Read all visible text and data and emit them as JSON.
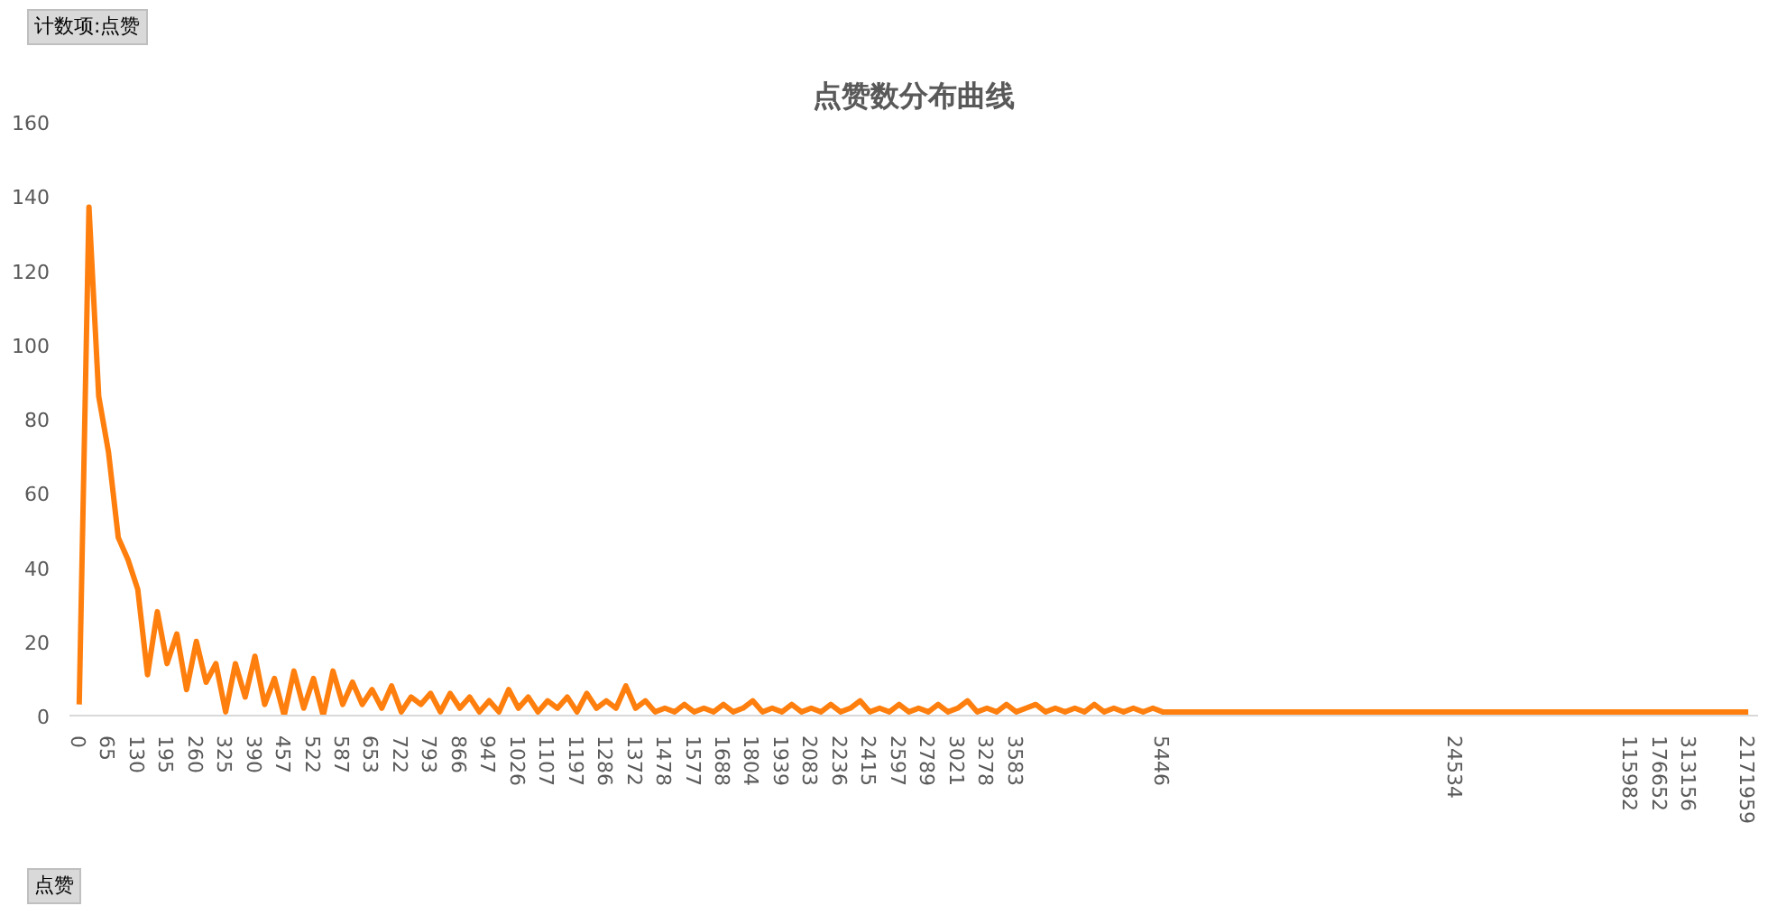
{
  "chart_data": {
    "type": "line",
    "title": "点赞数分布曲线",
    "annotations": [
      "计数项:点赞",
      "点赞"
    ],
    "categories": [
      "0",
      null,
      null,
      "65",
      null,
      null,
      "130",
      null,
      null,
      "195",
      null,
      null,
      "260",
      null,
      null,
      "325",
      null,
      null,
      "390",
      null,
      null,
      "457",
      null,
      null,
      "522",
      null,
      null,
      "587",
      null,
      null,
      "653",
      null,
      null,
      "722",
      null,
      null,
      "793",
      null,
      null,
      "866",
      null,
      null,
      "947",
      null,
      null,
      "1026",
      null,
      null,
      "1107",
      null,
      null,
      "1197",
      null,
      null,
      "1286",
      null,
      null,
      "1372",
      null,
      null,
      "1478",
      null,
      null,
      "1577",
      null,
      null,
      "1688",
      null,
      null,
      "1804",
      null,
      null,
      "1939",
      null,
      null,
      "2083",
      null,
      null,
      "2236",
      null,
      null,
      "2415",
      null,
      null,
      "2597",
      null,
      null,
      "2789",
      null,
      null,
      "3021",
      null,
      null,
      "3278",
      null,
      null,
      "3583",
      null,
      null,
      null,
      null,
      null,
      null,
      null,
      null,
      null,
      null,
      null,
      null,
      null,
      null,
      "5446",
      null,
      null,
      null,
      null,
      null,
      null,
      null,
      null,
      null,
      null,
      null,
      null,
      null,
      null,
      null,
      null,
      null,
      null,
      null,
      null,
      null,
      null,
      null,
      null,
      null,
      null,
      null,
      null,
      null,
      "24534",
      null,
      null,
      null,
      null,
      null,
      null,
      null,
      null,
      null,
      null,
      null,
      null,
      null,
      null,
      null,
      null,
      null,
      "115982",
      null,
      null,
      "176652",
      null,
      null,
      "313156",
      null,
      null,
      null,
      null,
      null,
      "2171959"
    ],
    "ylim": [
      0,
      160
    ],
    "yticks": [
      0,
      20,
      40,
      60,
      80,
      100,
      120,
      140,
      160
    ],
    "grid": false,
    "marker": "none",
    "line_style": "solid",
    "series": [
      {
        "color": "#ff7f0e",
        "values": [
          3,
          137,
          86,
          71,
          48,
          42,
          34,
          11,
          28,
          14,
          22,
          7,
          20,
          9,
          14,
          1,
          14,
          5,
          16,
          3,
          10,
          0,
          12,
          2,
          10,
          0,
          12,
          3,
          9,
          3,
          7,
          2,
          8,
          1,
          5,
          3,
          6,
          1,
          6,
          2,
          5,
          1,
          4,
          1,
          7,
          2,
          5,
          1,
          4,
          2,
          5,
          1,
          6,
          2,
          4,
          2,
          8,
          2,
          4,
          1,
          2,
          1,
          3,
          1,
          2,
          1,
          3,
          1,
          2,
          4,
          1,
          2,
          1,
          3,
          1,
          2,
          1,
          3,
          1,
          2,
          4,
          1,
          2,
          1,
          3,
          1,
          2,
          1,
          3,
          1,
          2,
          4,
          1,
          2,
          1,
          3,
          1,
          2,
          3,
          1,
          2,
          1,
          2,
          1,
          3,
          1,
          2,
          1,
          2,
          1,
          2,
          1,
          1,
          1,
          1,
          1,
          1,
          1,
          1,
          1,
          1,
          1,
          1,
          1,
          1,
          1,
          1,
          1,
          1,
          1,
          1,
          1,
          1,
          1,
          1,
          1,
          1,
          1,
          1,
          1,
          1,
          1,
          1,
          1,
          1,
          1,
          1,
          1,
          1,
          1,
          1,
          1,
          1,
          1,
          1,
          1,
          1,
          1,
          1,
          1,
          1,
          1,
          1,
          1,
          1,
          1,
          1,
          1,
          1,
          1,
          1,
          1
        ]
      }
    ]
  }
}
